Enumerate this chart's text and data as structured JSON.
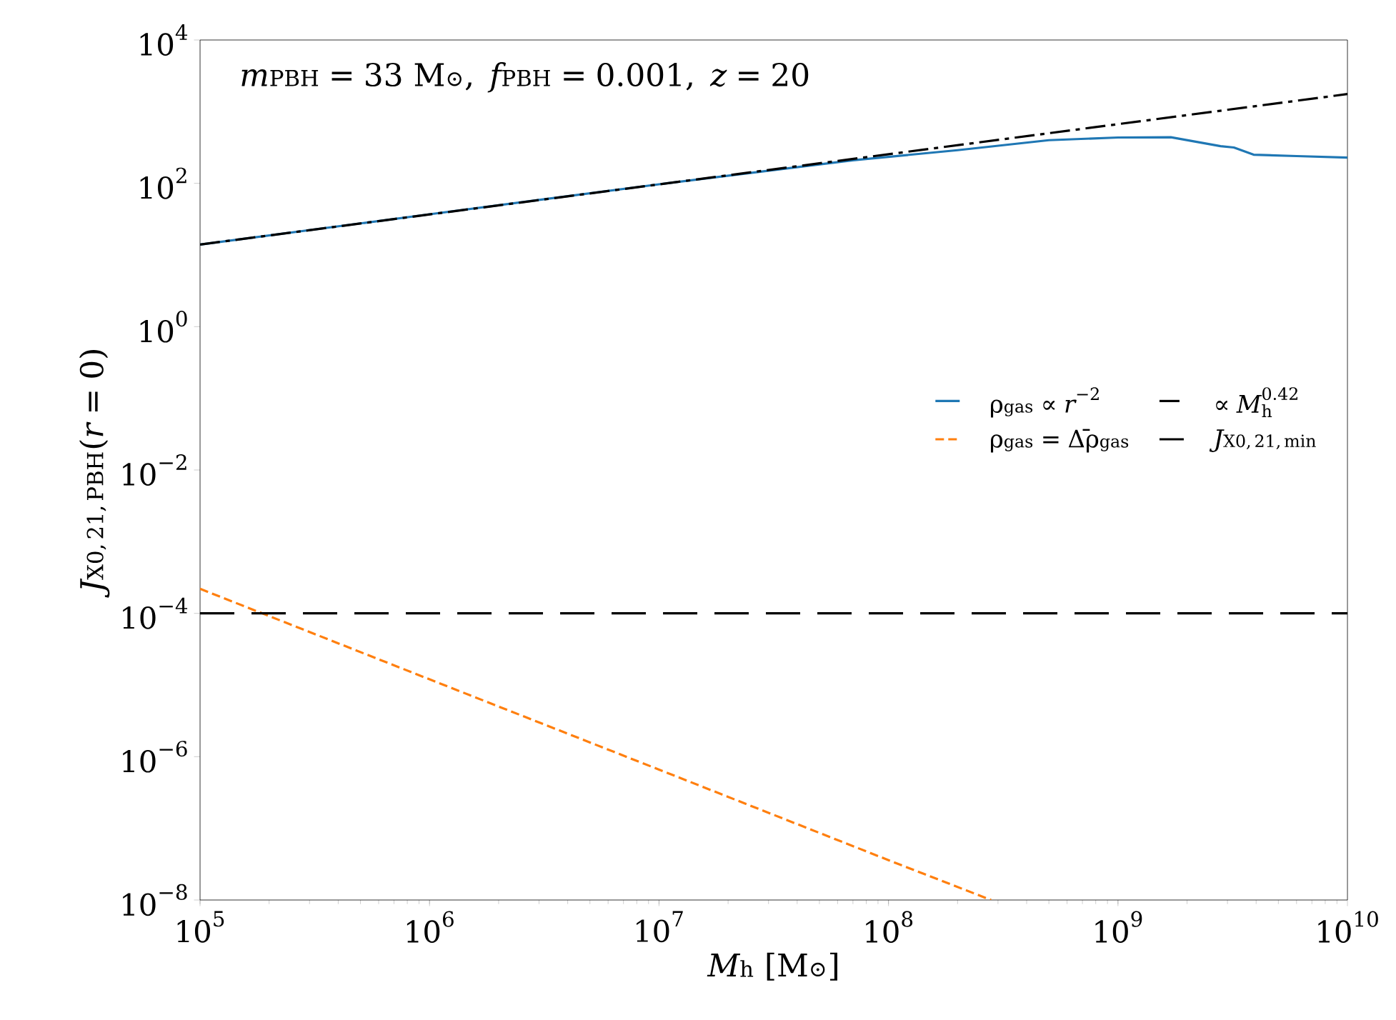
{
  "chart_data": {
    "type": "line",
    "xlabel": "M_{\\mathrm{h}}\\ [\\mathrm{M}_{\\odot}]",
    "ylabel": "J_{\\mathrm{X0,\\,21,\\,PBH}}(r = 0)",
    "annotations": [
      "m_{\\mathrm{PBH}} = 33\\ \\mathrm{M}_{\\odot},\\ f_{\\mathrm{PBH}} = 0.001,\\ z = 20"
    ],
    "log": "xy",
    "legend": "right",
    "grid": false,
    "xlim": [
      100000,
      10000000000
    ],
    "ylim": [
      1e-08,
      10000
    ],
    "xticks": [
      {
        "value": 100000,
        "label": "10$^{5}$"
      },
      {
        "value": 1000000,
        "label": "10$^{6}$"
      },
      {
        "value": 10000000,
        "label": "10$^{7}$"
      },
      {
        "value": 100000000,
        "label": "10$^{8}$"
      },
      {
        "value": 1000000000,
        "label": "10$^{9}$"
      },
      {
        "value": 10000000000,
        "label": "10$^{10}$"
      }
    ],
    "yticks": [
      {
        "value": 1e-08,
        "label": "10$^{−8}$"
      },
      {
        "value": 1e-06,
        "label": "10$^{−6}$"
      },
      {
        "value": 0.0001,
        "label": "10$^{−4}$"
      },
      {
        "value": 0.01,
        "label": "10$^{−2}$"
      },
      {
        "value": 1,
        "label": "10$^{0}$"
      },
      {
        "value": 100,
        "label": "10$^{2}$"
      },
      {
        "value": 10000,
        "label": "10$^{4}$"
      }
    ],
    "series": [
      {
        "name": "\\symup{\\rho}_{\\mathrm{gas}} \\propto r^{-2}",
        "color": "#1f77b4",
        "line_style": "solid",
        "x": [
          100000,
          1000000,
          10000000,
          70000000,
          200000000,
          500000000,
          1000000000,
          1700000000,
          2800000000,
          3200000000,
          3900000000,
          6000000000,
          10000000000
        ],
        "values": [
          14,
          37,
          97,
          210,
          290,
          400,
          436,
          440,
          330,
          316,
          251,
          240,
          229
        ]
      },
      {
        "name": "\\propto M_{\\mathrm{h}}^{0.42}",
        "color": "#000000",
        "line_style": "dashdot",
        "x": [
          100000,
          10000000000
        ],
        "values": [
          14,
          1760
        ]
      },
      {
        "name": "\\symup{\\rho}_{\\mathrm{gas}} = \\Delta\\bar{\\symup{\\rho}}_{\\mathrm{gas}}",
        "color": "#ff7f0e",
        "line_style": "dashed",
        "x": [
          100000,
          1000000,
          10000000,
          100000000,
          280000000
        ],
        "values": [
          0.00022,
          1.2e-05,
          6.6e-07,
          3.6e-08,
          1e-08
        ]
      },
      {
        "name": "J_{\\mathrm{X0,\\,21,\\,min}}",
        "color": "#000000",
        "line_style": "longdashed",
        "x": [
          100000,
          10000000000
        ],
        "values": [
          0.0001,
          0.0001
        ]
      }
    ]
  }
}
